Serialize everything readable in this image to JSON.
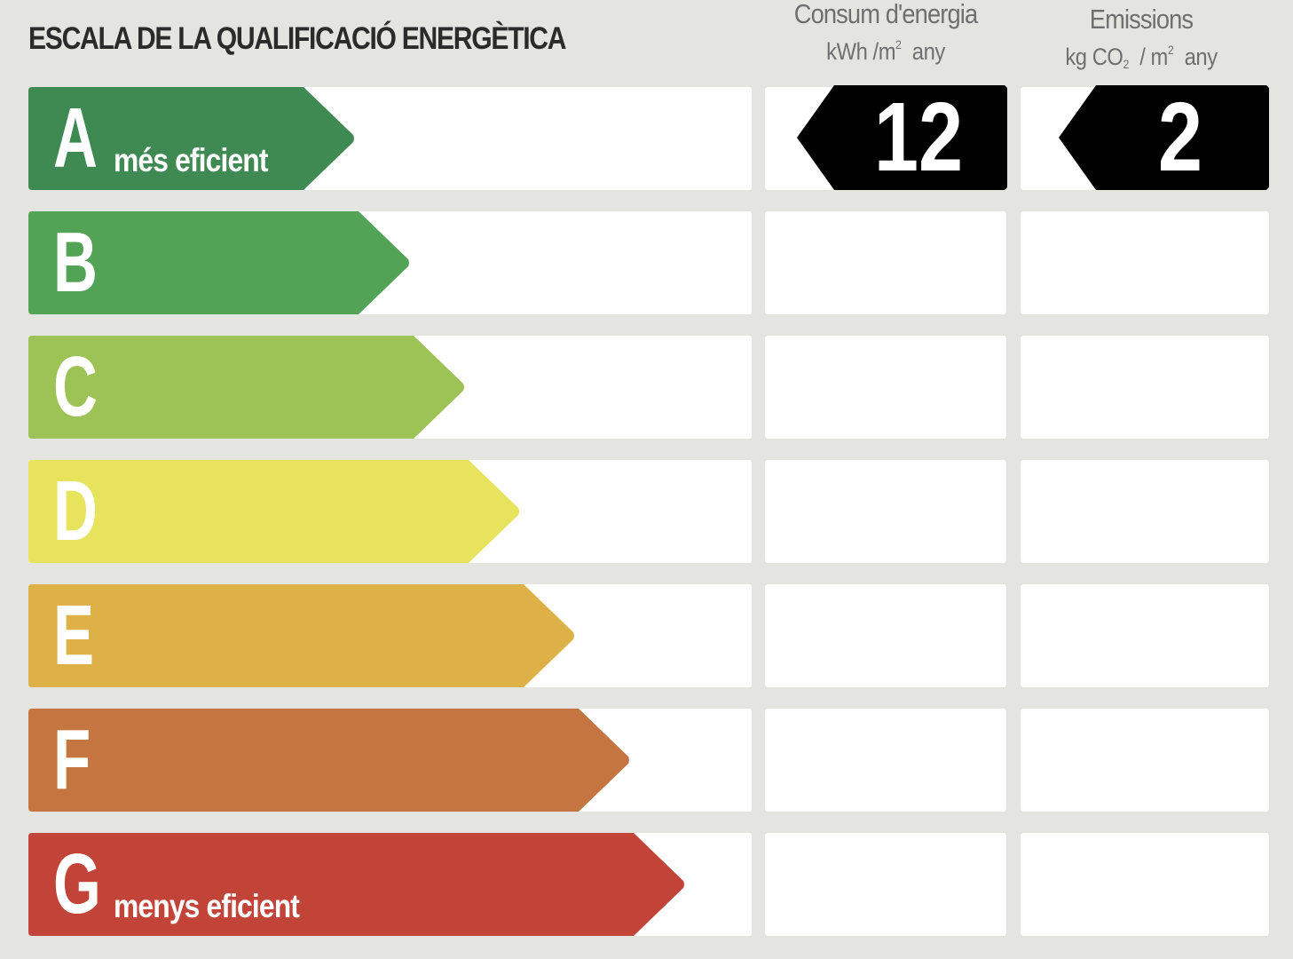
{
  "title": "ESCALA DE LA QUALIFICACIÓ ENERGÈTICA",
  "columns": {
    "energy": {
      "title": "Consum d'energia",
      "unit_pre": "kWh /m",
      "unit_sup": "2",
      "unit_post": "any"
    },
    "emissions": {
      "title": "Emissions",
      "unit_pre": "kg CO",
      "unit_sub": "2",
      "unit_mid": "/ m",
      "unit_sup": "2",
      "unit_post": "any"
    }
  },
  "ratings": [
    {
      "letter": "A",
      "label": "més eficient",
      "color": "#3e8a52"
    },
    {
      "letter": "B",
      "label": "",
      "color": "#52a356"
    },
    {
      "letter": "C",
      "label": "",
      "color": "#9dc256"
    },
    {
      "letter": "D",
      "label": "",
      "color": "#e7e35d"
    },
    {
      "letter": "E",
      "label": "",
      "color": "#deb148"
    },
    {
      "letter": "F",
      "label": "",
      "color": "#c57640"
    },
    {
      "letter": "G",
      "label": "menys eficient",
      "color": "#c24337"
    }
  ],
  "result": {
    "rating": "A",
    "energy_value": "12",
    "emissions_value": "2",
    "indicator_color": "#000000"
  }
}
